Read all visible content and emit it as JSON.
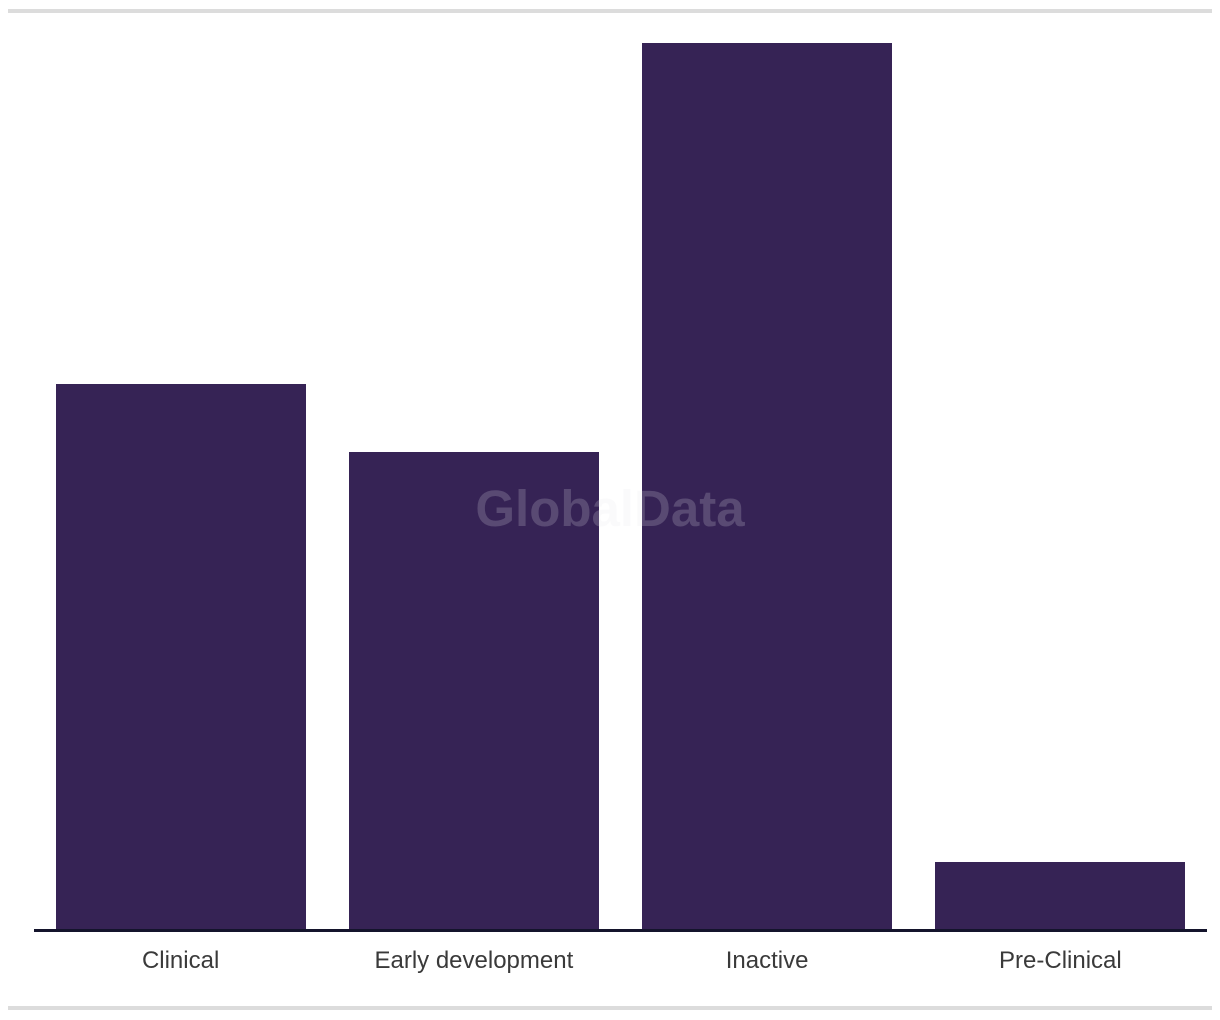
{
  "watermark": {
    "text": "GlobalData"
  },
  "colors": {
    "bar": "#362355",
    "axis": "#14142c",
    "divider": "#dcdcdc",
    "label": "#3a3a3a",
    "watermark": "rgba(231,231,236,0.2)"
  },
  "chart_data": {
    "type": "bar",
    "categories": [
      "Clinical",
      "Early development",
      "Inactive",
      "Pre-Clinical"
    ],
    "values": [
      8,
      7,
      13,
      1
    ],
    "title": "",
    "xlabel": "",
    "ylabel": "",
    "ylim": [
      0,
      13
    ],
    "grid": false,
    "legend": false,
    "value_axis_visible": false,
    "category_axis_visible": true,
    "bar_color": "#362355"
  }
}
